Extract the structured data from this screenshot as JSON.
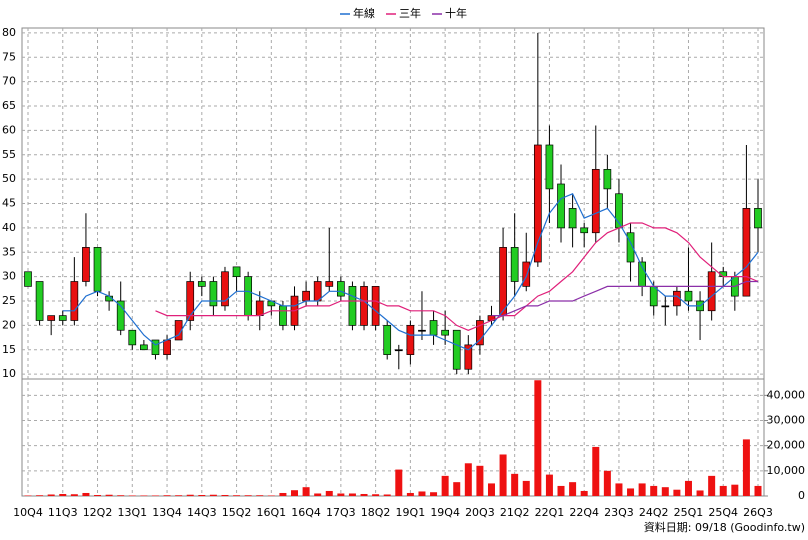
{
  "chart_data": {
    "type": "candlestick",
    "source": "資料日期: 09/18 (Goodinfo.tw)",
    "categories": [
      "10Q4",
      null,
      null,
      "11Q3",
      null,
      null,
      "12Q2",
      null,
      null,
      "13Q1",
      null,
      null,
      "13Q4",
      null,
      null,
      "14Q3",
      null,
      null,
      "15Q2",
      null,
      null,
      "16Q1",
      null,
      null,
      "16Q4",
      null,
      null,
      "17Q3",
      null,
      null,
      "18Q2",
      null,
      null,
      "19Q1",
      null,
      null,
      "19Q4",
      null,
      null,
      "20Q3",
      null,
      null,
      "21Q2",
      null,
      null,
      "22Q1",
      null,
      null,
      "22Q4",
      null,
      null,
      "23Q3",
      null,
      null,
      "24Q2",
      null,
      null,
      "25Q1",
      null,
      null,
      "25Q4",
      null,
      null,
      "26Q3"
    ],
    "open": [
      31,
      29,
      21,
      22,
      21,
      29,
      36,
      26,
      25,
      19,
      16,
      17,
      14,
      17,
      21,
      29,
      29,
      24,
      32,
      30,
      22,
      25,
      24,
      20,
      25,
      25,
      28,
      29,
      28,
      20,
      20,
      20,
      15,
      14,
      19,
      21,
      19,
      19,
      11,
      16,
      21,
      22,
      36,
      28,
      33,
      57,
      49,
      44,
      40,
      39,
      52,
      47,
      39,
      33,
      28,
      24,
      24,
      27,
      25,
      23,
      31,
      30,
      26,
      44
    ],
    "high": [
      31,
      29,
      22,
      23,
      34,
      43,
      36,
      27,
      29,
      19,
      17,
      17,
      18,
      21,
      31,
      30,
      30,
      32,
      32,
      31,
      27,
      25,
      25,
      28,
      29,
      30,
      40,
      30,
      29,
      29,
      28,
      21,
      16,
      21,
      27,
      23,
      23,
      19,
      18,
      22,
      24,
      40,
      43,
      39,
      80,
      61,
      53,
      47,
      41,
      61,
      55,
      50,
      41,
      34,
      29,
      26,
      28,
      36,
      27,
      37,
      32,
      31,
      57,
      50
    ],
    "low": [
      28,
      20,
      18,
      20,
      20,
      28,
      26,
      23,
      18,
      15,
      15,
      13,
      13,
      17,
      19,
      26,
      22,
      23,
      27,
      21,
      19,
      22,
      19,
      19,
      24,
      24,
      27,
      25,
      19,
      19,
      19,
      13,
      11,
      12,
      17,
      16,
      16,
      10,
      10,
      14,
      20,
      21,
      26,
      27,
      32,
      41,
      37,
      36,
      36,
      37,
      44,
      37,
      29,
      26,
      22,
      20,
      22,
      23,
      17,
      21,
      28,
      23,
      26,
      35
    ],
    "close": [
      28,
      21,
      22,
      21,
      29,
      36,
      27,
      25,
      19,
      16,
      15,
      14,
      17,
      21,
      29,
      28,
      24,
      31,
      30,
      22,
      25,
      24,
      20,
      26,
      27,
      29,
      29,
      26,
      20,
      28,
      28,
      14,
      15,
      20,
      19,
      18,
      18,
      11,
      16,
      21,
      22,
      36,
      29,
      33,
      57,
      48,
      40,
      40,
      39,
      52,
      48,
      40,
      33,
      28,
      24,
      24,
      27,
      25,
      23,
      31,
      30,
      26,
      44,
      40
    ],
    "volume": [
      200,
      300,
      600,
      800,
      700,
      1200,
      400,
      500,
      300,
      200,
      200,
      200,
      300,
      300,
      500,
      400,
      500,
      400,
      300,
      300,
      300,
      200,
      1200,
      2300,
      3500,
      1000,
      2000,
      1000,
      1000,
      800,
      700,
      600,
      10500,
      1200,
      1800,
      1500,
      8000,
      5500,
      13000,
      12000,
      5000,
      16500,
      8800,
      6000,
      46000,
      8500,
      4000,
      5500,
      2000,
      19500,
      10000,
      5000,
      3000,
      5000,
      4000,
      3500,
      2500,
      6000,
      2200,
      8000,
      4000,
      4500,
      22500,
      4000
    ],
    "series": [
      {
        "name": "年線",
        "color": "#1f6fd0",
        "values": [
          null,
          null,
          null,
          23,
          23,
          26,
          27,
          26,
          24,
          21,
          18,
          16,
          17,
          18,
          22,
          25,
          25,
          25,
          27,
          27,
          26,
          25,
          24,
          24,
          25,
          25,
          27,
          27,
          26,
          25,
          23,
          21,
          19,
          18,
          18,
          18,
          17,
          16,
          15,
          17,
          20,
          23,
          26,
          30,
          37,
          43,
          46,
          47,
          42,
          43,
          44,
          41,
          37,
          32,
          28,
          26,
          26,
          24,
          24,
          26,
          28,
          30,
          32,
          35
        ]
      },
      {
        "name": "三年",
        "color": "#e0207a",
        "values": [
          null,
          null,
          null,
          null,
          null,
          null,
          null,
          null,
          null,
          null,
          null,
          23,
          22,
          22,
          22,
          22,
          22,
          22,
          22,
          22,
          22,
          23,
          23,
          23,
          24,
          24,
          24,
          25,
          25,
          25,
          25,
          24,
          24,
          23,
          23,
          23,
          22,
          20,
          19,
          20,
          21,
          22,
          22,
          24,
          26,
          27,
          29,
          31,
          34,
          37,
          39,
          40,
          41,
          41,
          40,
          40,
          39,
          37,
          34,
          32,
          30,
          30,
          30,
          29
        ]
      },
      {
        "name": "十年",
        "color": "#8b2fa8",
        "values": [
          null,
          null,
          null,
          null,
          null,
          null,
          null,
          null,
          null,
          null,
          null,
          null,
          null,
          null,
          null,
          null,
          null,
          null,
          null,
          null,
          null,
          null,
          null,
          null,
          null,
          null,
          null,
          null,
          null,
          null,
          null,
          null,
          null,
          null,
          null,
          null,
          null,
          null,
          null,
          null,
          22,
          22,
          23,
          24,
          24,
          25,
          25,
          25,
          26,
          27,
          28,
          28,
          28,
          28,
          28,
          28,
          28,
          28,
          28,
          28,
          28,
          28,
          29,
          29
        ]
      }
    ],
    "up_color": "#e81010",
    "down_color": "#22cc22",
    "volume_color": "#ee1111",
    "ylim": [
      9,
      81
    ],
    "yticks": [
      10,
      15,
      20,
      25,
      30,
      35,
      40,
      45,
      50,
      55,
      60,
      65,
      70,
      75,
      80
    ],
    "y2lim": [
      0,
      46500
    ],
    "y2ticks": [
      0,
      {
        "value": 10000,
        "label": "10,000"
      },
      {
        "value": 20000,
        "label": "20,000"
      },
      {
        "value": 30000,
        "label": "30,000"
      },
      {
        "value": 40000,
        "label": "40,000"
      }
    ],
    "grid": true
  }
}
